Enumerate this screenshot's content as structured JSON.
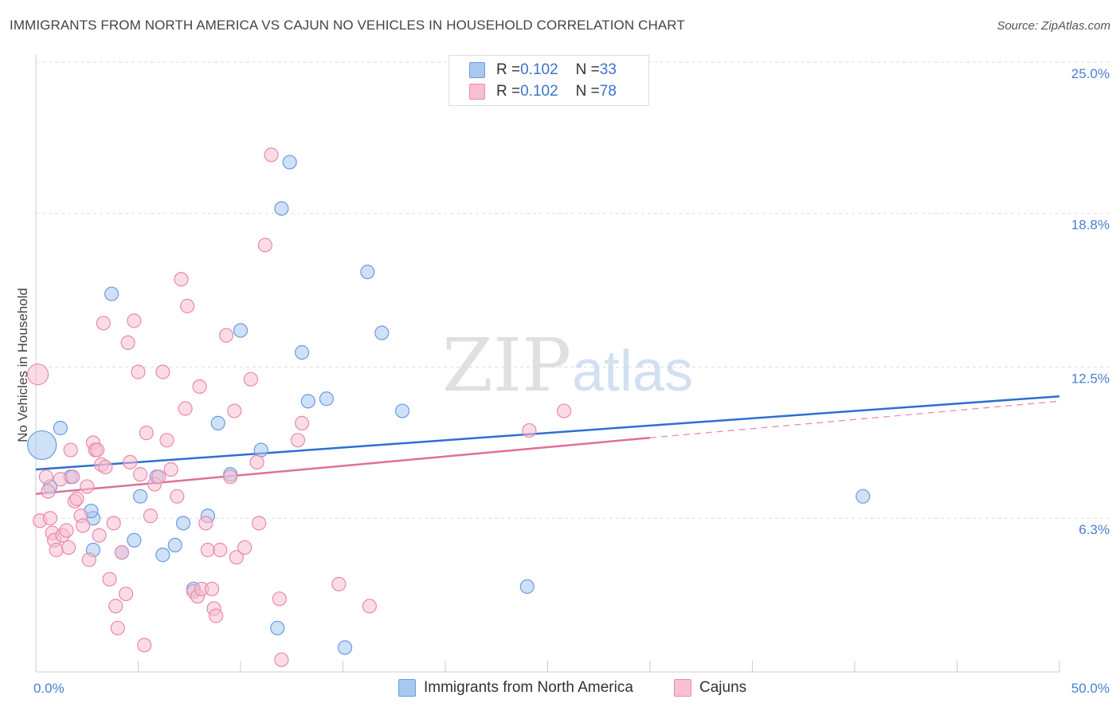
{
  "title": "IMMIGRANTS FROM NORTH AMERICA VS CAJUN NO VEHICLES IN HOUSEHOLD CORRELATION CHART",
  "source": "Source: ZipAtlas.com",
  "watermark": {
    "zip": "ZIP",
    "atlas": "atlas"
  },
  "legend": {
    "rows": [
      {
        "r_label": "R = ",
        "r_value": "0.102",
        "n_label": "N = ",
        "n_value": "33",
        "color": "#a8c8f0",
        "border": "#6a9be0"
      },
      {
        "r_label": "R = ",
        "r_value": "0.102",
        "n_label": "N = ",
        "n_value": "78",
        "color": "#f8c0d2",
        "border": "#e88aa8"
      }
    ]
  },
  "bottom_legend": [
    "Immigrants from North America",
    "Cajuns"
  ],
  "chart_data": {
    "type": "scatter",
    "ylabel": "No Vehicles in Household",
    "xlim": [
      0,
      50
    ],
    "ylim": [
      0,
      25
    ],
    "x_tick_labels": [
      "0.0%",
      "50.0%"
    ],
    "y_ticks": [
      6.3,
      12.5,
      18.8,
      25.0
    ],
    "y_tick_labels": [
      "6.3%",
      "12.5%",
      "18.8%",
      "25.0%"
    ],
    "grid": true,
    "legend_position": "top-center",
    "series": [
      {
        "name": "Immigrants from North America",
        "color": "#a8c8f0",
        "stroke": "#6a9be0",
        "trend_color": "#2f6fce",
        "trend": {
          "x0": 0,
          "y0": 8.3,
          "x1": 50,
          "y1": 11.3
        },
        "points": [
          [
            0.3,
            9.3
          ],
          [
            0.7,
            7.6
          ],
          [
            1.2,
            10.0
          ],
          [
            1.7,
            8.0
          ],
          [
            2.8,
            6.3
          ],
          [
            2.7,
            6.6
          ],
          [
            2.8,
            5.0
          ],
          [
            3.7,
            15.5
          ],
          [
            4.2,
            4.9
          ],
          [
            4.8,
            5.4
          ],
          [
            5.1,
            7.2
          ],
          [
            5.9,
            8.0
          ],
          [
            6.2,
            4.8
          ],
          [
            6.8,
            5.2
          ],
          [
            7.2,
            6.1
          ],
          [
            7.7,
            3.4
          ],
          [
            8.4,
            6.4
          ],
          [
            8.9,
            10.2
          ],
          [
            9.5,
            8.1
          ],
          [
            10.0,
            14.0
          ],
          [
            11.0,
            9.1
          ],
          [
            11.8,
            1.8
          ],
          [
            12.0,
            19.0
          ],
          [
            12.4,
            20.9
          ],
          [
            13.0,
            13.1
          ],
          [
            13.3,
            11.1
          ],
          [
            14.2,
            11.2
          ],
          [
            15.1,
            1.0
          ],
          [
            16.2,
            16.4
          ],
          [
            16.9,
            13.9
          ],
          [
            17.9,
            10.7
          ],
          [
            24.0,
            3.5
          ],
          [
            40.4,
            7.2
          ]
        ]
      },
      {
        "name": "Cajuns",
        "color": "#f8c0d2",
        "stroke": "#e88aa8",
        "trend_color": "#e07098",
        "trend": {
          "x0": 0,
          "y0": 7.3,
          "x1": 30,
          "y1": 9.6
        },
        "trend_dashed": {
          "x0": 30,
          "y0": 9.6,
          "x1": 50,
          "y1": 11.1
        },
        "points": [
          [
            0.1,
            12.2
          ],
          [
            0.2,
            6.2
          ],
          [
            0.5,
            8.0
          ],
          [
            0.6,
            7.4
          ],
          [
            0.7,
            6.3
          ],
          [
            0.8,
            5.7
          ],
          [
            0.9,
            5.4
          ],
          [
            1.0,
            5.0
          ],
          [
            1.2,
            7.9
          ],
          [
            1.3,
            5.6
          ],
          [
            1.5,
            5.8
          ],
          [
            1.6,
            5.1
          ],
          [
            1.7,
            9.1
          ],
          [
            1.8,
            8.0
          ],
          [
            1.9,
            7.0
          ],
          [
            2.0,
            7.1
          ],
          [
            2.2,
            6.4
          ],
          [
            2.3,
            6.0
          ],
          [
            2.5,
            7.6
          ],
          [
            2.6,
            4.6
          ],
          [
            2.8,
            9.4
          ],
          [
            2.9,
            9.1
          ],
          [
            3.0,
            9.1
          ],
          [
            3.1,
            5.6
          ],
          [
            3.2,
            8.5
          ],
          [
            3.3,
            14.3
          ],
          [
            3.4,
            8.4
          ],
          [
            3.6,
            3.8
          ],
          [
            3.8,
            6.1
          ],
          [
            3.9,
            2.7
          ],
          [
            4.0,
            1.8
          ],
          [
            4.2,
            4.9
          ],
          [
            4.4,
            3.2
          ],
          [
            4.5,
            13.5
          ],
          [
            4.6,
            8.6
          ],
          [
            4.8,
            14.4
          ],
          [
            5.0,
            12.3
          ],
          [
            5.1,
            8.1
          ],
          [
            5.3,
            1.1
          ],
          [
            5.4,
            9.8
          ],
          [
            5.6,
            6.4
          ],
          [
            5.8,
            7.7
          ],
          [
            6.0,
            8.0
          ],
          [
            6.2,
            12.3
          ],
          [
            6.4,
            9.5
          ],
          [
            6.6,
            8.3
          ],
          [
            6.9,
            7.2
          ],
          [
            7.1,
            16.1
          ],
          [
            7.3,
            10.8
          ],
          [
            7.4,
            15.0
          ],
          [
            7.7,
            3.3
          ],
          [
            7.9,
            3.1
          ],
          [
            8.0,
            11.7
          ],
          [
            8.1,
            3.4
          ],
          [
            8.3,
            6.1
          ],
          [
            8.4,
            5.0
          ],
          [
            8.6,
            3.4
          ],
          [
            8.7,
            2.6
          ],
          [
            8.8,
            2.3
          ],
          [
            9.0,
            5.0
          ],
          [
            9.3,
            13.8
          ],
          [
            9.5,
            8.0
          ],
          [
            9.7,
            10.7
          ],
          [
            9.8,
            4.7
          ],
          [
            10.2,
            5.1
          ],
          [
            10.5,
            12.0
          ],
          [
            10.8,
            8.6
          ],
          [
            10.9,
            6.1
          ],
          [
            11.2,
            17.5
          ],
          [
            11.5,
            21.2
          ],
          [
            11.9,
            3.0
          ],
          [
            12.0,
            0.5
          ],
          [
            12.8,
            9.5
          ],
          [
            13.0,
            10.2
          ],
          [
            14.8,
            3.6
          ],
          [
            16.3,
            2.7
          ],
          [
            24.1,
            9.9
          ],
          [
            25.8,
            10.7
          ]
        ]
      }
    ]
  }
}
